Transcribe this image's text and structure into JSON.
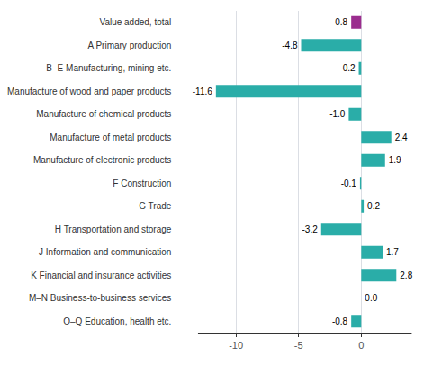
{
  "chart_data": {
    "type": "bar",
    "orientation": "horizontal",
    "categories": [
      "O–Q Education, health etc.",
      "M–N Business-to-business services",
      "K Financial and insurance activities",
      "J Information and communication",
      "H Transportation and storage",
      "G Trade",
      "F Construction",
      "Manufacture of electronic products",
      "Manufacture of metal products",
      "Manufacture of chemical products",
      "Manufacture of wood and paper products",
      "B–E Manufacturing, mining etc.",
      "A Primary production",
      "Value added, total"
    ],
    "values": [
      -0.8,
      0.0,
      2.8,
      1.7,
      -3.2,
      0.2,
      -0.1,
      1.9,
      2.4,
      -1.0,
      -11.6,
      -0.2,
      -4.8,
      -0.8
    ],
    "value_labels": [
      "-0.8",
      "0.0",
      "2.8",
      "1.7",
      "-3.2",
      "0.2",
      "-0.1",
      "1.9",
      "2.4",
      "-1.0",
      "-11.6",
      "-0.2",
      "-4.8",
      "-0.8"
    ],
    "data_labels": true,
    "colors": [
      "#2aada8",
      "#2aada8",
      "#2aada8",
      "#2aada8",
      "#2aada8",
      "#2aada8",
      "#2aada8",
      "#2aada8",
      "#2aada8",
      "#2aada8",
      "#2aada8",
      "#2aada8",
      "#2aada8",
      "#9b2d8e"
    ],
    "xlim": [
      -13,
      4
    ],
    "xticks": [
      -10,
      -5,
      0
    ],
    "grid": true
  }
}
